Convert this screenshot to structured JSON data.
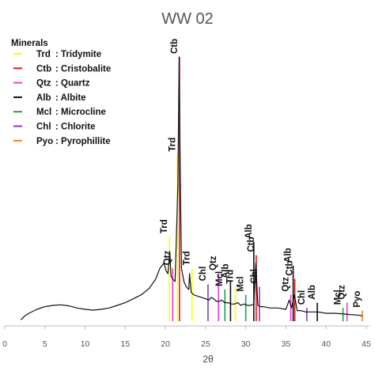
{
  "chart_data": {
    "type": "line",
    "title": "WW 02",
    "xlabel": "2θ",
    "ylabel": "",
    "xlim": [
      0,
      45
    ],
    "ylim": [
      0,
      100
    ],
    "x_ticks": [
      "0",
      "5",
      "10",
      "15",
      "20",
      "25",
      "30",
      "35",
      "40",
      "45"
    ],
    "grid": false,
    "legend": {
      "title": "Minerals",
      "placement": "top-left",
      "entries": [
        {
          "abbr": "Trd",
          "name": ": Tridymite",
          "color": "#ffff00"
        },
        {
          "abbr": "Ctb",
          "name": ": Cristobalite",
          "color": "#e31a1c"
        },
        {
          "abbr": "Qtz",
          "name": ": Quartz",
          "color": "#e040e0"
        },
        {
          "abbr": "Alb",
          "name": ": Albite",
          "color": "#111111"
        },
        {
          "abbr": "Mcl",
          "name": ": Microcline",
          "color": "#1aa34a"
        },
        {
          "abbr": "Chl",
          "name": ": Chlorite",
          "color": "#7b3fb5"
        },
        {
          "abbr": "Pyo",
          "name": ": Pyrophillite",
          "color": "#f07d1a"
        }
      ]
    },
    "series": [
      {
        "color": "#111111",
        "x": [
          2,
          2.5,
          3,
          4,
          5,
          6,
          7,
          8,
          9,
          10,
          11,
          12,
          13,
          14,
          15,
          16,
          17,
          18,
          18.8,
          19.3,
          19.8,
          20.1,
          20.3,
          20.55,
          20.7,
          20.9,
          21.2,
          21.55,
          21.7,
          21.85,
          22.0,
          22.3,
          22.6,
          22.9,
          23.0,
          23.2,
          23.5,
          24,
          24.5,
          25,
          25.4,
          25.7,
          26,
          26.35,
          26.7,
          27.0,
          27.4,
          27.8,
          28.2,
          28.6,
          29,
          29.4,
          29.8,
          30.2,
          30.6,
          31.0,
          31.25,
          31.5,
          31.8,
          32.2,
          33,
          34,
          35,
          35.4,
          35.7,
          36.05,
          36.4,
          36.8,
          37.5,
          38,
          39,
          40,
          41,
          42,
          43,
          44,
          44.5
        ],
        "y": [
          0.5,
          2,
          3,
          4.5,
          5.5,
          6,
          6.2,
          5.8,
          5,
          4.5,
          4.2,
          4.5,
          5,
          6,
          7,
          8.5,
          10,
          12.5,
          16,
          20,
          22,
          19,
          18,
          26,
          17,
          16,
          15,
          52,
          100,
          55,
          20,
          15,
          13,
          12,
          18,
          11,
          10,
          9.5,
          9,
          8.5,
          8,
          9,
          8.5,
          7.5,
          7.5,
          8,
          7,
          7,
          6.5,
          6.5,
          7,
          6,
          6.5,
          6,
          6,
          6.5,
          22,
          6,
          5.5,
          5.5,
          5,
          5,
          4.5,
          8,
          5,
          10,
          4,
          4,
          3.5,
          3.5,
          3.5,
          3,
          3,
          2.8,
          2.5,
          2.3,
          2
        ]
      }
    ],
    "peaks": [
      {
        "label": "Trd",
        "x": 20.5,
        "height": 32,
        "color": "#ffff00"
      },
      {
        "label": "Qtz",
        "x": 20.9,
        "height": 20,
        "color": "#e040e0"
      },
      {
        "label": "Trd",
        "x": 21.5,
        "height": 63,
        "color": "#ffff00"
      },
      {
        "label": "Ctb",
        "x": 21.75,
        "height": 100,
        "color": "#e31a1c"
      },
      {
        "label": "Trd",
        "x": 23.3,
        "height": 20,
        "color": "#ffff00"
      },
      {
        "label": "Chl",
        "x": 25.3,
        "height": 14,
        "color": "#7b3fb5"
      },
      {
        "label": "Qtz",
        "x": 26.6,
        "height": 18,
        "color": "#e040e0"
      },
      {
        "label": "Mcl",
        "x": 27.4,
        "height": 12,
        "color": "#1aa34a"
      },
      {
        "label": "Alb",
        "x": 28.1,
        "height": 15,
        "color": "#111111"
      },
      {
        "label": "Trd",
        "x": 28.7,
        "height": 13,
        "color": "#ffff00"
      },
      {
        "label": "Mcl",
        "x": 30.0,
        "height": 10,
        "color": "#1aa34a"
      },
      {
        "label": "Alb",
        "x": 31.0,
        "height": 30,
        "color": "#111111"
      },
      {
        "label": "Ctb",
        "x": 31.3,
        "height": 25,
        "color": "#e31a1c"
      },
      {
        "label": "Chl",
        "x": 31.7,
        "height": 13,
        "color": "#7b3fb5"
      },
      {
        "label": "Qtz",
        "x": 35.6,
        "height": 10,
        "color": "#e040e0"
      },
      {
        "label": "Alb",
        "x": 35.9,
        "height": 21,
        "color": "#111111"
      },
      {
        "label": "Ctb",
        "x": 36.1,
        "height": 16,
        "color": "#e31a1c"
      },
      {
        "label": "Chl",
        "x": 37.6,
        "height": 5,
        "color": "#7b3fb5"
      },
      {
        "label": "Alb",
        "x": 38.9,
        "height": 7,
        "color": "#111111"
      },
      {
        "label": "Mcl",
        "x": 42.1,
        "height": 5,
        "color": "#1aa34a"
      },
      {
        "label": "Qtz",
        "x": 42.6,
        "height": 7,
        "color": "#e040e0"
      },
      {
        "label": "Pyo",
        "x": 44.5,
        "height": 4,
        "color": "#f07d1a"
      }
    ]
  }
}
